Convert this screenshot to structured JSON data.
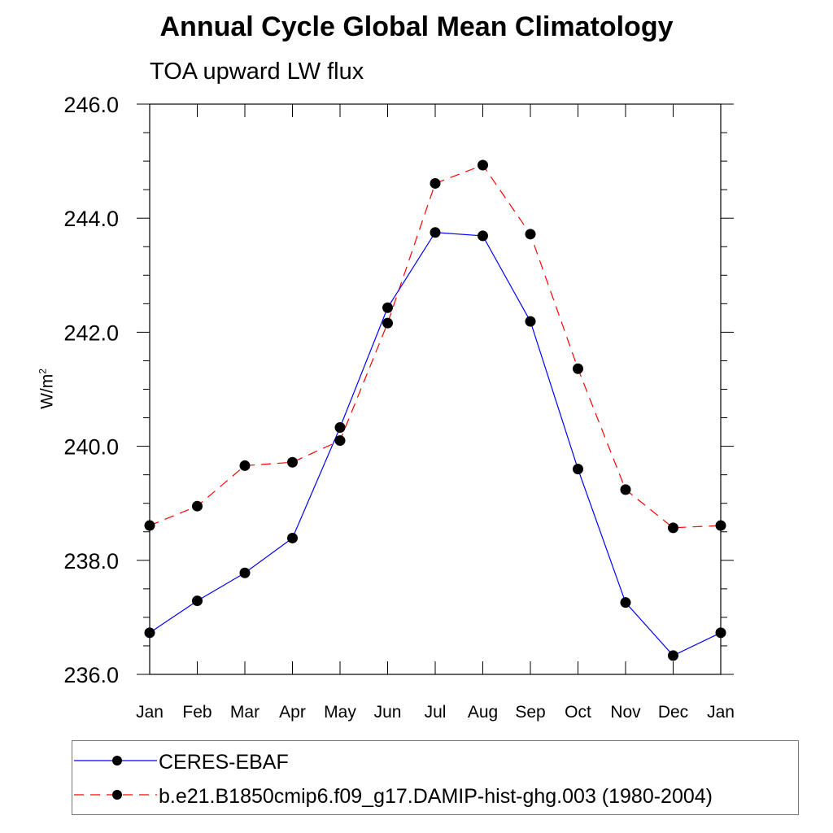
{
  "title": "Annual Cycle Global Mean Climatology",
  "subtitle": "TOA upward LW flux",
  "ylabel_base": "W/m",
  "ylabel_sup": "2",
  "chart_data": {
    "type": "line",
    "title": "Annual Cycle Global Mean Climatology",
    "subtitle": "TOA upward LW flux",
    "xlabel": "",
    "ylabel": "W/m2",
    "categories": [
      "Jan",
      "Feb",
      "Mar",
      "Apr",
      "May",
      "Jun",
      "Jul",
      "Aug",
      "Sep",
      "Oct",
      "Nov",
      "Dec",
      "Jan"
    ],
    "ylim": [
      236.0,
      246.0
    ],
    "yticks": [
      "236.0",
      "238.0",
      "240.0",
      "242.0",
      "244.0",
      "246.0"
    ],
    "grid": false,
    "legend_position": "bottom",
    "series": [
      {
        "name": "CERES-EBAF",
        "color": "#0000ff",
        "line_style": "solid",
        "marker": "filled-circle",
        "values": [
          236.73,
          237.29,
          237.78,
          238.39,
          240.33,
          242.43,
          243.75,
          243.69,
          242.19,
          239.6,
          237.26,
          236.33,
          236.73
        ]
      },
      {
        "name": "b.e21.B1850cmip6.f09_g17.DAMIP-hist-ghg.003 (1980-2004)",
        "color": "#ff0000",
        "line_style": "dashed",
        "marker": "filled-circle",
        "values": [
          238.61,
          238.95,
          239.66,
          239.72,
          240.1,
          242.16,
          244.61,
          244.93,
          243.72,
          241.36,
          239.24,
          238.57,
          238.61
        ]
      }
    ]
  }
}
